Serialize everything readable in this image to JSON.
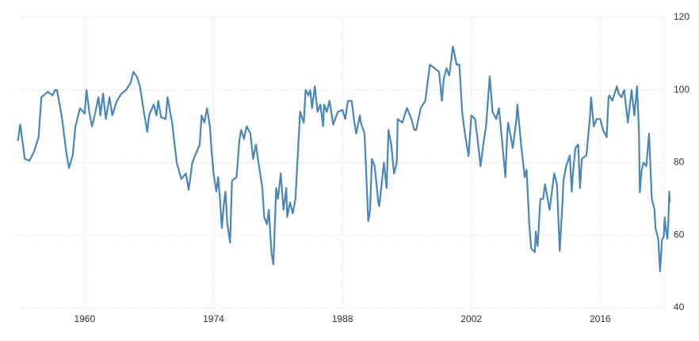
{
  "chart_data": {
    "type": "line",
    "x": [
      1952.75,
      1953,
      1953.5,
      1954,
      1954.5,
      1955,
      1955.3,
      1956,
      1956.5,
      1956.8,
      1957,
      1957.5,
      1958,
      1958.3,
      1958.7,
      1959,
      1959.5,
      1960,
      1960.2,
      1960.5,
      1960.8,
      1961,
      1961.5,
      1961.7,
      1962,
      1962.3,
      1962.7,
      1963,
      1963.5,
      1964,
      1964.5,
      1965,
      1965.3,
      1965.7,
      1966,
      1966.5,
      1966.8,
      1967,
      1967.5,
      1967.8,
      1968,
      1968.3,
      1968.8,
      1969,
      1969.5,
      1970,
      1970.5,
      1971,
      1971.3,
      1971.7,
      1972,
      1972.5,
      1972.7,
      1973,
      1973.3,
      1973.6,
      1973.8,
      1974,
      1974.3,
      1974.5,
      1974.7,
      1974.9,
      1975.1,
      1975.3,
      1975.5,
      1975.8,
      1976,
      1976.5,
      1976.8,
      1977,
      1977.3,
      1977.6,
      1978,
      1978.3,
      1978.6,
      1979,
      1979.3,
      1979.5,
      1979.8,
      1980,
      1980.3,
      1980.5,
      1980.8,
      1981,
      1981.3,
      1981.6,
      1981.9,
      1982,
      1982.3,
      1982.6,
      1982.9,
      1983,
      1983.4,
      1983.8,
      1984,
      1984.3,
      1984.5,
      1984.7,
      1985,
      1985.3,
      1985.6,
      1985.9,
      1986,
      1986.3,
      1986.6,
      1987,
      1987.5,
      1988,
      1988.3,
      1988.6,
      1989,
      1989.3,
      1989.5,
      1989.9,
      1990,
      1990.4,
      1990.6,
      1990.8,
      1991,
      1991.2,
      1991.5,
      1991.9,
      1992,
      1992.5,
      1992.8,
      1993,
      1993.3,
      1993.6,
      1993.9,
      1994,
      1994.5,
      1995,
      1995.5,
      1995.8,
      1996,
      1996.5,
      1997,
      1997.5,
      1998,
      1998.5,
      1998.8,
      1999,
      1999.3,
      1999.6,
      2000,
      2000.4,
      2000.7,
      2001,
      2001.3,
      2001.7,
      2002,
      2002.4,
      2002.7,
      2003,
      2003.3,
      2003.6,
      2004,
      2004.3,
      2004.7,
      2005,
      2005.3,
      2005.7,
      2005.9,
      2006,
      2006.5,
      2006.9,
      2007,
      2007.4,
      2007.8,
      2008,
      2008.3,
      2008.5,
      2008.9,
      2009,
      2009.2,
      2009.5,
      2009.8,
      2010,
      2010.5,
      2010.8,
      2011,
      2011.3,
      2011.6,
      2011.9,
      2012,
      2012.3,
      2012.7,
      2012.9,
      2013,
      2013.3,
      2013.6,
      2013.8,
      2014,
      2014.5,
      2014.9,
      2015,
      2015.3,
      2015.6,
      2016,
      2016.3,
      2016.7,
      2016.9,
      2017,
      2017.3,
      2017.8,
      2018,
      2018.3,
      2018.6,
      2019,
      2019.4,
      2019.7,
      2020,
      2020.2,
      2020.3,
      2020.5,
      2020.7,
      2021,
      2021.3,
      2021.6,
      2021.9,
      2022,
      2022.3,
      2022.5,
      2022.7,
      2022.9,
      2023,
      2023.1,
      2023.3,
      2023.4,
      2023.5,
      2023.55
    ],
    "series": [
      {
        "color": "#4a86b8",
        "values": [
          86,
          90.5,
          81,
          80.5,
          83,
          87,
          98,
          99.5,
          98.5,
          100,
          100,
          93,
          83,
          78.5,
          82,
          90,
          95,
          93.5,
          100,
          94,
          90,
          92,
          98,
          93,
          99,
          92,
          98,
          93,
          97,
          99,
          100,
          102,
          105,
          103.5,
          101,
          93,
          88.5,
          93,
          96,
          93,
          97,
          92.5,
          92,
          98,
          91,
          80,
          75.5,
          77,
          72.5,
          80,
          82,
          85,
          93,
          91,
          95,
          90,
          83,
          77,
          72,
          76,
          70,
          62,
          68,
          72,
          63,
          58,
          75,
          76,
          86,
          89,
          86.5,
          90,
          88,
          81,
          85,
          78,
          73,
          65,
          63,
          67,
          55,
          52,
          73,
          70,
          77,
          67,
          73,
          65,
          69,
          66,
          70,
          75,
          94,
          91,
          100,
          98.5,
          100,
          95,
          101,
          94,
          96,
          90,
          96,
          94,
          97,
          90.5,
          94,
          94.5,
          92,
          97,
          97,
          91,
          88,
          93,
          91,
          88,
          76,
          63.9,
          66.8,
          81,
          79,
          69,
          68,
          80,
          73,
          89,
          85,
          77,
          80,
          92,
          91,
          95,
          92,
          89,
          89,
          95,
          97,
          107,
          106,
          105,
          97,
          103,
          106,
          104,
          112,
          107,
          107,
          94,
          88,
          81.8,
          93,
          92,
          86,
          79,
          85,
          90,
          103.8,
          94,
          92,
          95,
          87,
          76,
          88,
          91,
          84,
          92,
          96,
          85,
          76,
          78,
          62.6,
          56.4,
          55.3,
          61,
          57,
          70,
          70,
          74,
          67,
          73,
          77,
          74,
          55.7,
          69,
          75,
          79,
          82,
          72,
          76,
          84,
          85,
          73,
          81,
          82,
          93,
          98,
          90,
          92,
          92,
          89,
          87,
          98,
          98.5,
          97,
          101,
          99,
          98,
          100,
          91,
          100,
          93,
          101,
          89,
          71.8,
          78,
          80,
          79,
          88,
          70,
          67,
          62,
          59,
          50,
          58.6,
          59.7,
          64.9,
          62,
          59,
          64,
          72,
          69
        ]
      }
    ],
    "xlim": [
      1952.7,
      2023.8
    ],
    "xticks": [
      1960,
      1974,
      1988,
      2002,
      2016
    ],
    "ylim": [
      40,
      120
    ],
    "yticks": [
      40,
      60,
      80,
      100,
      120
    ],
    "grid": true
  }
}
